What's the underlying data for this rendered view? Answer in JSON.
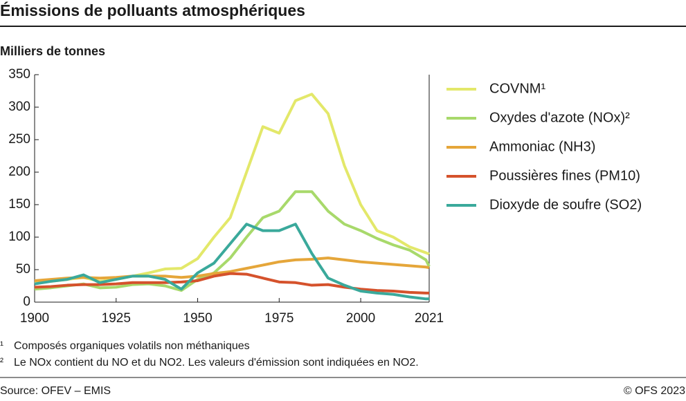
{
  "chart_data": {
    "type": "line",
    "title": "Émissions de polluants atmosphériques",
    "subtitle": "Milliers de tonnes",
    "x": [
      1900,
      1905,
      1910,
      1915,
      1920,
      1925,
      1930,
      1935,
      1940,
      1945,
      1950,
      1955,
      1960,
      1965,
      1970,
      1975,
      1980,
      1985,
      1990,
      1995,
      2000,
      2005,
      2010,
      2015,
      2020,
      2021
    ],
    "series": [
      {
        "name": "COVNM¹",
        "color": "#e3e86a",
        "values": [
          30,
          32,
          35,
          38,
          32,
          35,
          40,
          45,
          51,
          52,
          67,
          100,
          130,
          200,
          270,
          260,
          310,
          320,
          290,
          210,
          150,
          110,
          100,
          85,
          76,
          74
        ]
      },
      {
        "name": "Oxydes d'azote (NOx)²",
        "color": "#a8d96b",
        "values": [
          20,
          22,
          25,
          28,
          22,
          23,
          27,
          28,
          25,
          18,
          35,
          45,
          68,
          100,
          130,
          140,
          170,
          170,
          140,
          120,
          110,
          98,
          88,
          80,
          65,
          55
        ]
      },
      {
        "name": "Ammoniac (NH3)",
        "color": "#e5a63a",
        "values": [
          33,
          35,
          37,
          38,
          37,
          38,
          40,
          40,
          40,
          38,
          40,
          44,
          47,
          52,
          57,
          62,
          65,
          66,
          68,
          65,
          62,
          60,
          58,
          56,
          54,
          53
        ]
      },
      {
        "name": "Poussières fines (PM10)",
        "color": "#d5522c",
        "values": [
          23,
          24,
          26,
          27,
          27,
          28,
          30,
          30,
          30,
          31,
          33,
          40,
          44,
          43,
          37,
          31,
          30,
          26,
          27,
          23,
          20,
          18,
          17,
          15,
          14,
          14
        ]
      },
      {
        "name": "Dioxyde de soufre (SO2)",
        "color": "#3aa99b",
        "values": [
          28,
          32,
          35,
          42,
          30,
          35,
          40,
          40,
          35,
          20,
          45,
          60,
          90,
          120,
          110,
          110,
          120,
          75,
          37,
          26,
          17,
          14,
          12,
          8,
          5,
          5
        ]
      }
    ],
    "xlim": [
      1900,
      2021
    ],
    "xticks": [
      1900,
      1925,
      1950,
      1975,
      2000,
      2021
    ],
    "ylim": [
      0,
      350
    ],
    "yticks": [
      0,
      50,
      100,
      150,
      200,
      250,
      300,
      350
    ],
    "grid": false,
    "legend": "right",
    "footnotes": [
      {
        "marker": "¹",
        "text": "Composés organiques volatils non méthaniques"
      },
      {
        "marker": "²",
        "text": "Le NOx contient du NO et du NO2. Les valeurs d'émission sont indiquées en NO2."
      }
    ],
    "source": "Source: OFEV – EMIS",
    "copyright": "© OFS 2023"
  }
}
